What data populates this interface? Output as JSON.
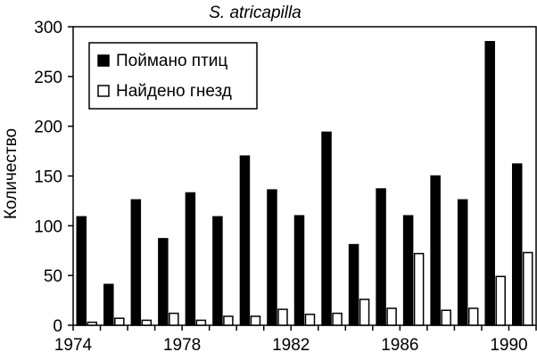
{
  "chart_data": {
    "type": "bar",
    "title": "S. atricapilla",
    "xlabel": "",
    "ylabel": "Количество",
    "ylim": [
      0,
      300
    ],
    "yticks": [
      0,
      50,
      100,
      150,
      200,
      250,
      300
    ],
    "x_tick_labels": [
      "1974",
      "1978",
      "1982",
      "1986",
      "1990"
    ],
    "categories": [
      "1974",
      "1975",
      "1976",
      "1977",
      "1978",
      "1979",
      "1980",
      "1981",
      "1982",
      "1983",
      "1984",
      "1985",
      "1986",
      "1987",
      "1988",
      "1989",
      "1990"
    ],
    "series": [
      {
        "name": "Поймано птиц",
        "color": "#000000",
        "values": [
          109,
          41,
          126,
          87,
          133,
          109,
          170,
          136,
          110,
          194,
          81,
          137,
          110,
          150,
          126,
          285,
          162
        ]
      },
      {
        "name": "Найдено гнезд",
        "color": "#ffffff",
        "values": [
          3,
          7,
          5,
          12,
          5,
          9,
          9,
          16,
          11,
          12,
          26,
          17,
          72,
          15,
          17,
          49,
          73
        ]
      }
    ],
    "grid": false,
    "legend_position": "top-left"
  }
}
